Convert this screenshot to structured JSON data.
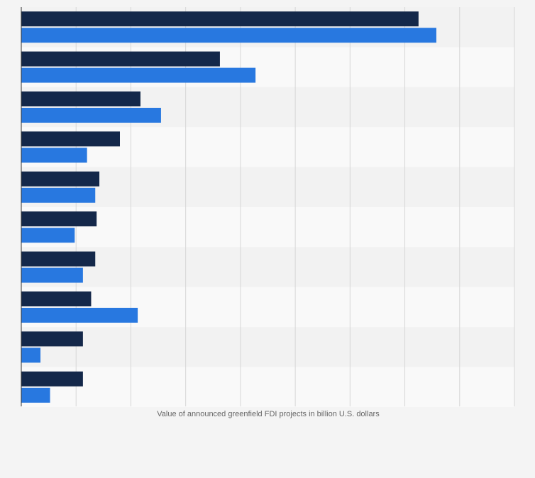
{
  "chart_data": {
    "type": "bar",
    "orientation": "horizontal",
    "categories": [
      "",
      "",
      "",
      "",
      "",
      "",
      "",
      "",
      "",
      ""
    ],
    "series": [
      {
        "values": [
          145,
          72.5,
          43.5,
          36,
          28.5,
          27.5,
          27,
          25.5,
          22.5,
          22.5
        ]
      },
      {
        "values": [
          151.5,
          85.5,
          51,
          24,
          27,
          19.5,
          22.5,
          42.5,
          7,
          10.5
        ]
      }
    ],
    "xlabel": "Value of announced greenfield FDI projects in billion U.S. dollars",
    "xlim": [
      0,
      180
    ],
    "grid": true,
    "legend": "none",
    "colors": {
      "series_0": "#14284a",
      "series_1": "#2878e0",
      "band_light": "#f9f9f9",
      "band_dark": "#f2f2f2",
      "grid": "#d6d6d6",
      "axis": "#333333",
      "label": "#666666"
    }
  }
}
